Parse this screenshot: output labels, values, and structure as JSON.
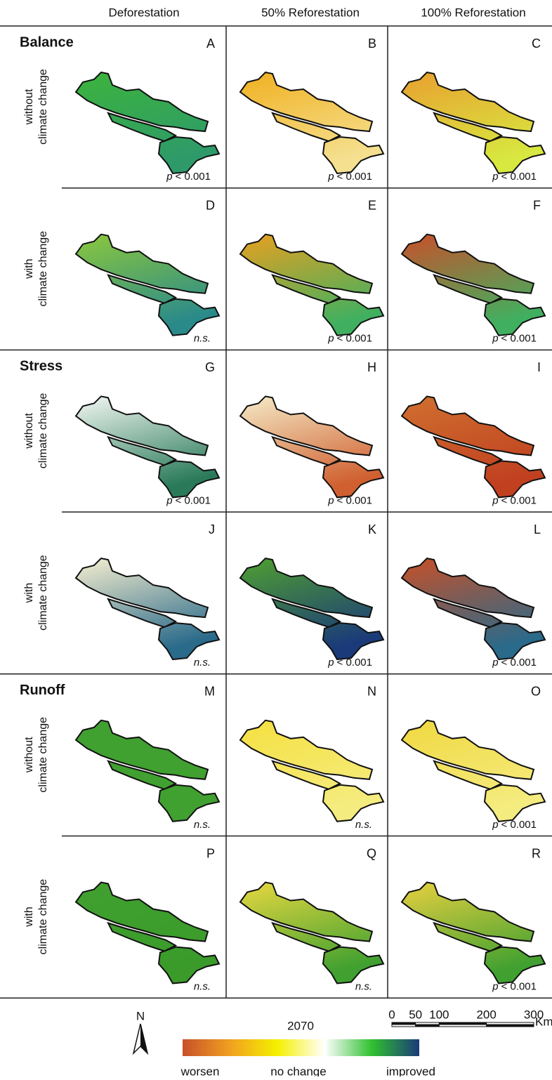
{
  "columns": [
    "Deforestation",
    "50% Reforestation",
    "100% Reforestation"
  ],
  "groups": [
    {
      "name": "Balance",
      "rows": [
        {
          "label": [
            "without",
            "climate change"
          ],
          "panels": [
            {
              "letter": "A",
              "stat_var": "p",
              "stat": "< 0.001",
              "colors": [
                "#3cb43c",
                "#2e9a6a"
              ]
            },
            {
              "letter": "B",
              "stat_var": "p",
              "stat": "< 0.001",
              "colors": [
                "#f0b020",
                "#f5e090"
              ]
            },
            {
              "letter": "C",
              "stat_var": "p",
              "stat": "< 0.001",
              "colors": [
                "#e8a030",
                "#d8e840"
              ]
            }
          ]
        },
        {
          "label": [
            "with",
            "climate change"
          ],
          "panels": [
            {
              "letter": "D",
              "stat": "n.s.",
              "colors": [
                "#8cc83c",
                "#2a8a8a"
              ]
            },
            {
              "letter": "E",
              "stat_var": "p",
              "stat": "< 0.001",
              "colors": [
                "#e8a020",
                "#40b060"
              ]
            },
            {
              "letter": "F",
              "stat_var": "p",
              "stat": "< 0.001",
              "colors": [
                "#c8502a",
                "#40b060"
              ]
            }
          ]
        }
      ]
    },
    {
      "name": "Stress",
      "rows": [
        {
          "label": [
            "without",
            "climate change"
          ],
          "panels": [
            {
              "letter": "G",
              "stat_var": "p",
              "stat": "< 0.001",
              "colors": [
                "#f4f8f4",
                "#2a7a5a"
              ]
            },
            {
              "letter": "H",
              "stat_var": "p",
              "stat": "< 0.001",
              "colors": [
                "#f5ecc8",
                "#d06030"
              ]
            },
            {
              "letter": "I",
              "stat_var": "p",
              "stat": "< 0.001",
              "colors": [
                "#d07030",
                "#c04020"
              ]
            }
          ]
        },
        {
          "label": [
            "with",
            "climate change"
          ],
          "panels": [
            {
              "letter": "J",
              "stat": "n.s.",
              "colors": [
                "#f8f0d0",
                "#2a6a8a"
              ]
            },
            {
              "letter": "K",
              "stat_var": "p",
              "stat": "< 0.001",
              "colors": [
                "#50a030",
                "#1a3a7a"
              ]
            },
            {
              "letter": "L",
              "stat_var": "p",
              "stat": "< 0.001",
              "colors": [
                "#c85028",
                "#2a6a8a"
              ]
            }
          ]
        }
      ]
    },
    {
      "name": "Runoff",
      "rows": [
        {
          "label": [
            "without",
            "climate change"
          ],
          "panels": [
            {
              "letter": "M",
              "stat": "n.s.",
              "colors": [
                "#40a030",
                "#40a030"
              ]
            },
            {
              "letter": "N",
              "stat": "n.s.",
              "colors": [
                "#f5e040",
                "#f5ec80"
              ]
            },
            {
              "letter": "O",
              "stat_var": "p",
              "stat": "< 0.001",
              "colors": [
                "#f0d840",
                "#f5ec80"
              ]
            }
          ]
        },
        {
          "label": [
            "with",
            "climate change"
          ],
          "panels": [
            {
              "letter": "P",
              "stat": "n.s.",
              "colors": [
                "#40a030",
                "#3a9a2a"
              ]
            },
            {
              "letter": "Q",
              "stat": "n.s.",
              "colors": [
                "#e8d840",
                "#40a030"
              ]
            },
            {
              "letter": "R",
              "stat_var": "p",
              "stat": "< 0.001",
              "colors": [
                "#e8d040",
                "#40a030"
              ]
            }
          ]
        }
      ]
    }
  ],
  "legend": {
    "year": "2070",
    "labels": [
      "worsen",
      "no change",
      "improved"
    ],
    "colors": [
      "#c8502a",
      "#f0a020",
      "#f5f000",
      "#ffffff",
      "#30c030",
      "#1a3a7a"
    ],
    "north": "N",
    "scale": {
      "ticks": [
        0,
        50,
        100,
        200,
        300
      ],
      "unit": "Km"
    }
  }
}
